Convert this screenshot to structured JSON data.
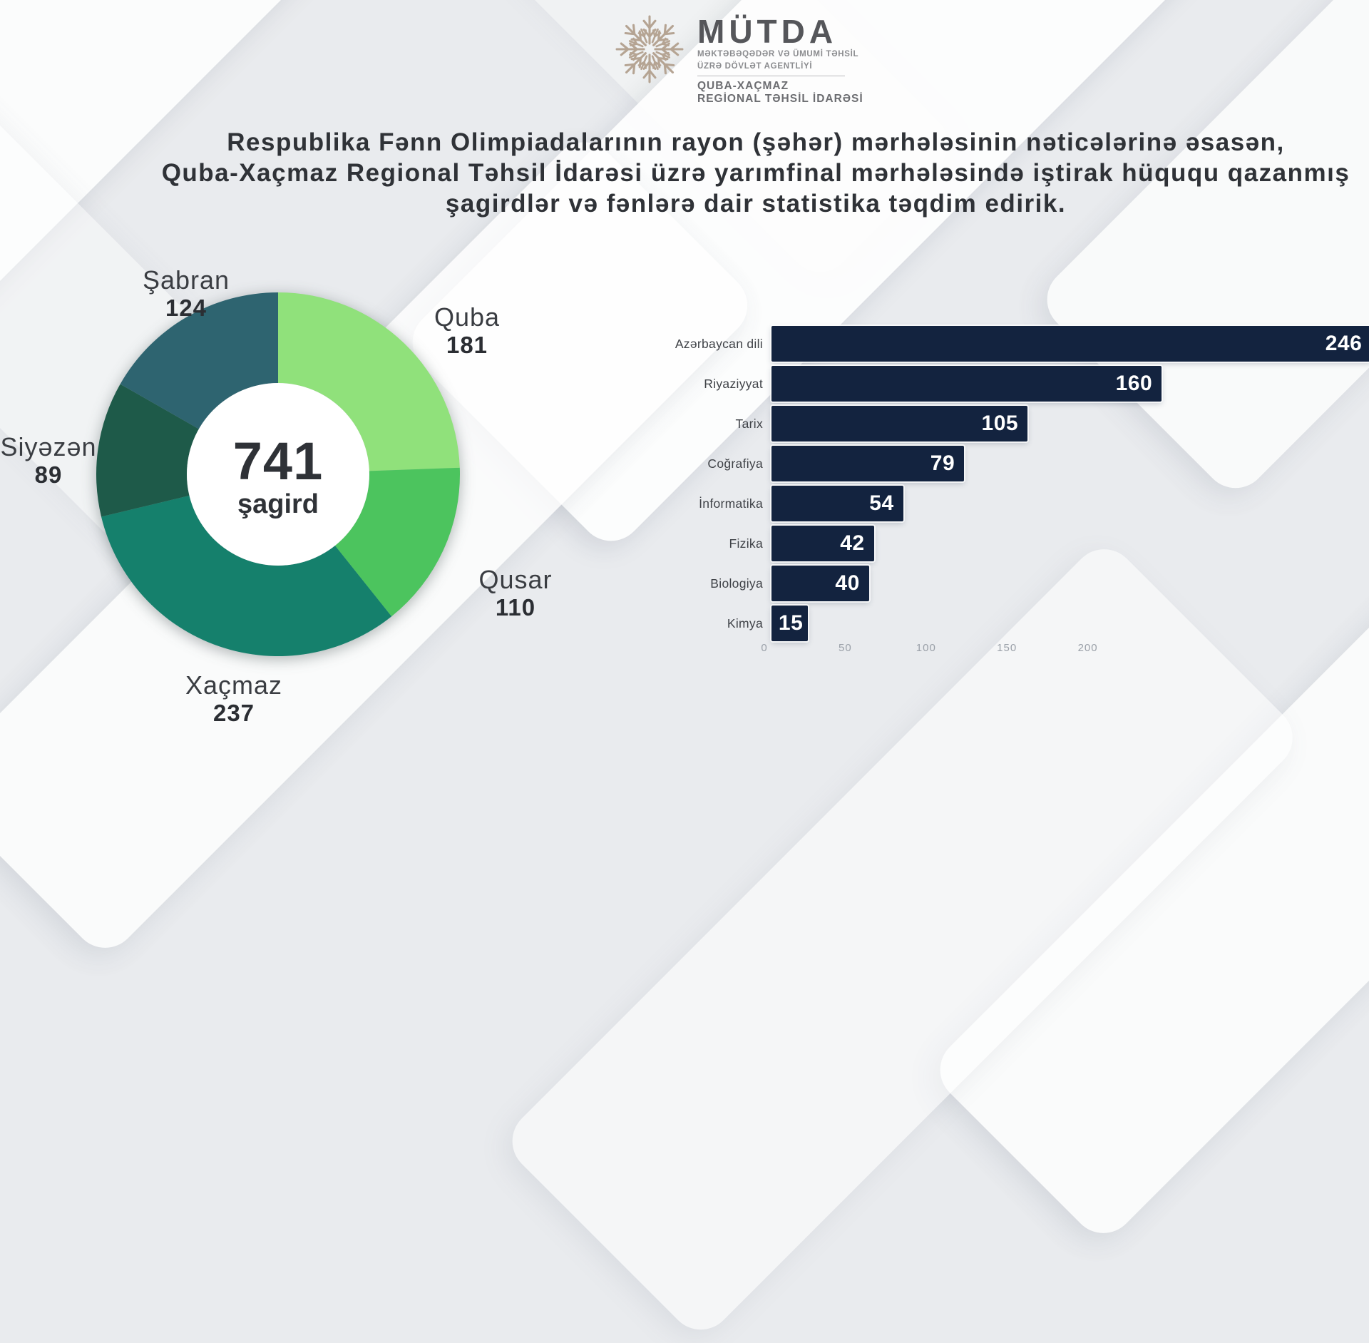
{
  "logo": {
    "name": "MÜTDA",
    "agency_line1": "MƏKTƏBƏQƏDƏR VƏ ÜMUMİ TƏHSİL",
    "agency_line2": "ÜZRƏ DÖVLƏT AGENTLİYİ",
    "dept_line1": "QUBA-XAÇMAZ",
    "dept_line2": "REGİONAL TƏHSİL İDARƏSİ",
    "icon": "starburst-emblem-icon",
    "icon_color": "#b5a493"
  },
  "title": {
    "line1": "Respublika Fənn Olimpiadalarının rayon (şəhər) mərhələsinin nəticələrinə əsasən,",
    "line2": "Quba-Xaçmaz Regional Təhsil İdarəsi üzrə yarımfinal mərhələsində iştirak hüququ qazanmış",
    "line3": "şagirdlər və fənlərə dair statistika təqdim edirik."
  },
  "chart_data": [
    {
      "type": "pie",
      "subtype": "donut",
      "center_value": "741",
      "center_unit": "şagird",
      "total": 741,
      "start_angle_deg": 0,
      "direction": "clockwise",
      "segments": [
        {
          "label": "Quba",
          "value": 181,
          "color": "#90e17b"
        },
        {
          "label": "Qusar",
          "value": 110,
          "color": "#4cc45e"
        },
        {
          "label": "Xaçmaz",
          "value": 237,
          "color": "#15806c"
        },
        {
          "label": "Siyəzən",
          "value": 89,
          "color": "#1e5a49"
        },
        {
          "label": "Şabran",
          "value": 124,
          "color": "#2e6470"
        }
      ]
    },
    {
      "type": "bar",
      "orientation": "horizontal",
      "categories": [
        "Azərbaycan dili",
        "Riyaziyyat",
        "Tarix",
        "Coğrafiya",
        "İnformatika",
        "Fizika",
        "Biologiya",
        "Kimya"
      ],
      "values": [
        246,
        160,
        105,
        79,
        54,
        42,
        40,
        15
      ],
      "x_ticks": [
        0,
        50,
        100,
        150,
        200
      ],
      "xlim": [
        0,
        246
      ],
      "grid": false,
      "legend": "none",
      "bar_color": "#13233f",
      "value_label_color": "#ffffff",
      "tick_label_color": "#9aa0a8"
    }
  ]
}
